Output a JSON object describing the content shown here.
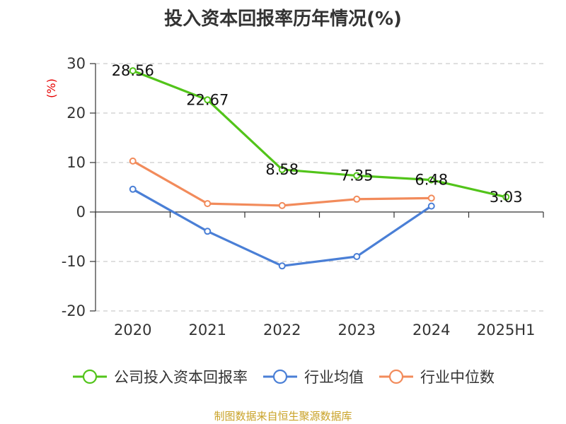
{
  "title": "投入资本回报率历年情况(%)",
  "source": "制图数据来自恒生聚源数据库",
  "chart_data": {
    "type": "line",
    "title": "投入资本回报率历年情况(%)",
    "ylabel": "(%)",
    "ylim": [
      -20,
      30
    ],
    "yticks": [
      30,
      20,
      10,
      0,
      -10,
      -20
    ],
    "ytick_labels": [
      "30",
      "20",
      "10",
      "0",
      "-10",
      "-20"
    ],
    "categories": [
      "2020",
      "2021",
      "2022",
      "2023",
      "2024",
      "2025H1"
    ],
    "grid": true,
    "legend_position": "bottom",
    "series": [
      {
        "name": "公司投入资本回报率",
        "color": "#52c41a",
        "values": [
          28.56,
          22.67,
          8.58,
          7.35,
          6.48,
          3.03
        ],
        "labels": [
          "28.56",
          "22.67",
          "8.58",
          "7.35",
          "6.48",
          "3.03"
        ]
      },
      {
        "name": "行业均值",
        "color": "#4a7fd6",
        "values": [
          4.6,
          -3.9,
          -10.9,
          -9.0,
          1.2,
          null
        ]
      },
      {
        "name": "行业中位数",
        "color": "#f28b5b",
        "values": [
          10.3,
          1.7,
          1.3,
          2.6,
          2.8,
          null
        ]
      }
    ]
  }
}
